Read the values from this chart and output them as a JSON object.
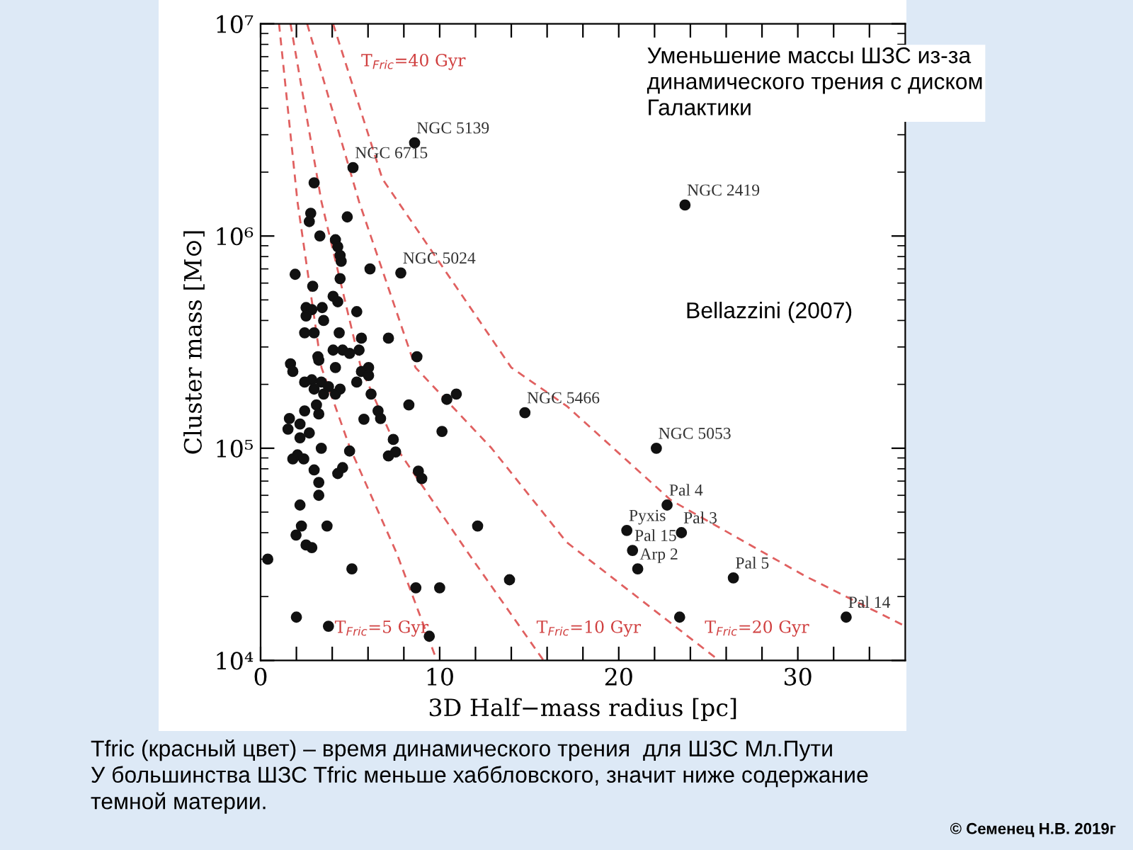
{
  "chart_data": {
    "type": "scatter",
    "xlabel": "3D Half−mass radius [pc]",
    "ylabel": "Cluster mass [M⊙]",
    "log": "y",
    "grid": false,
    "legend": false,
    "xlim": [
      0,
      36
    ],
    "ylim": [
      10000,
      10000000
    ],
    "xticks": [
      0,
      {
        "value": 2,
        "label": null
      },
      {
        "value": 4,
        "label": null
      },
      {
        "value": 6,
        "label": null
      },
      {
        "value": 8,
        "label": null
      },
      10,
      {
        "value": 12,
        "label": null
      },
      {
        "value": 14,
        "label": null
      },
      {
        "value": 16,
        "label": null
      },
      {
        "value": 18,
        "label": null
      },
      20,
      {
        "value": 22,
        "label": null
      },
      {
        "value": 24,
        "label": null
      },
      {
        "value": 26,
        "label": null
      },
      {
        "value": 28,
        "label": null
      },
      30,
      {
        "value": 32,
        "label": null
      },
      {
        "value": 34,
        "label": null
      }
    ],
    "yticks": [
      {
        "value": 10000,
        "label": "10⁴"
      },
      {
        "value": 100000,
        "label": "10⁵"
      },
      {
        "value": 1000000,
        "label": "10⁶"
      },
      {
        "value": 10000000,
        "label": "10⁷"
      }
    ],
    "series": [
      {
        "color": "#111111",
        "marker": "circle",
        "x": [
          8.6,
          5.16,
          2.99,
          2.8,
          2.72,
          4.84,
          3.31,
          4.18,
          4.31,
          4.44,
          4.5,
          1.93,
          6.11,
          7.83,
          4.44,
          2.91,
          4.05,
          4.31,
          5.37,
          2.54,
          2.86,
          3.44,
          2.54,
          3.52,
          2.46,
          4.39,
          2.99,
          5.63,
          7.14,
          4.05,
          4.58,
          5.5,
          3.2,
          8.73,
          1.67,
          4.97,
          1.8,
          3.25,
          4.18,
          6.03,
          5.63,
          6.03,
          2.46,
          2.86,
          3.39,
          3.79,
          2.99,
          3.52,
          4.44,
          5.37,
          6.17,
          4.18,
          8.28,
          10.4,
          10.93,
          3.12,
          2.46,
          3.25,
          6.56,
          5.77,
          6.7,
          1.61,
          2.2,
          1.53,
          2.72,
          10.13,
          2.2,
          7.41,
          3.39,
          4.97,
          7.54,
          7.14,
          2.06,
          1.8,
          2.41,
          4.58,
          4.31,
          2.99,
          8.81,
          9.0,
          3.25,
          3.25,
          2.2,
          2.28,
          3.71,
          12.12,
          1.98,
          2.54,
          2.86,
          0.4,
          5.1,
          13.9,
          8.67,
          10.0,
          2.0,
          3.79,
          9.42,
          23.7,
          14.76,
          22.1,
          22.7,
          20.45,
          23.5,
          20.77,
          21.06,
          26.4,
          32.7,
          23.4
        ],
        "values": [
          2750000,
          2100000,
          1780000,
          1280000,
          1170000,
          1230000,
          1000000,
          960000,
          890000,
          810000,
          760000,
          660000,
          700000,
          670000,
          630000,
          580000,
          520000,
          490000,
          440000,
          460000,
          450000,
          460000,
          420000,
          400000,
          350000,
          350000,
          350000,
          330000,
          330000,
          290000,
          290000,
          290000,
          270000,
          270000,
          250000,
          280000,
          230000,
          260000,
          240000,
          240000,
          230000,
          220000,
          205000,
          210000,
          205000,
          195000,
          190000,
          180000,
          190000,
          205000,
          180000,
          180000,
          160000,
          170000,
          180000,
          160000,
          150000,
          145000,
          150000,
          137000,
          138000,
          138000,
          130000,
          123000,
          118000,
          120000,
          112000,
          110000,
          100000,
          97000,
          96000,
          92000,
          93000,
          89000,
          89000,
          81000,
          76000,
          79000,
          78000,
          72000,
          69000,
          60000,
          54000,
          43000,
          43000,
          43000,
          39000,
          35000,
          34000,
          30000,
          27000,
          24000,
          22000,
          22000,
          16000,
          14500,
          13000,
          1400000,
          147000,
          100000,
          54000,
          41000,
          40000,
          33000,
          27000,
          24500,
          16000,
          16000
        ]
      },
      {
        "type": "line",
        "color": "#e06060",
        "marker": "none",
        "line_style": "dashed",
        "x": [
          1.03,
          2.06,
          3.4,
          5.0,
          7.6,
          9.84
        ],
        "values": [
          10000000,
          1450000,
          240000,
          100000,
          32000,
          10000
        ]
      },
      {
        "type": "line",
        "color": "#e06060",
        "marker": "none",
        "line_style": "dashed",
        "x": [
          1.67,
          3.4,
          5.6,
          7.6,
          11.6,
          15.8
        ],
        "values": [
          10000000,
          1450000,
          240000,
          100000,
          32000,
          10000
        ]
      },
      {
        "type": "line",
        "color": "#e06060",
        "marker": "none",
        "line_style": "dashed",
        "x": [
          2.6,
          5.5,
          8.65,
          12.9,
          17.1,
          25.6
        ],
        "values": [
          10000000,
          1450000,
          240000,
          100000,
          36000,
          10000
        ]
      },
      {
        "type": "line",
        "color": "#e06060",
        "marker": "none",
        "line_style": "dashed",
        "x": [
          4.05,
          6.8,
          14.0,
          17.1,
          22.9,
          30.4,
          36
        ],
        "values": [
          10000000,
          1860000,
          240000,
          158000,
          57000,
          25000,
          14500
        ]
      }
    ],
    "annotations": [
      "Уменьшение массы ШЗС из-за\nдинамического трения с диском\nГалактики",
      "Bellazzini (2007)",
      "Tfric (красный цвет) – время динамического трения  для ШЗС Мл.Пути\nУ большинства ШЗС Tfric меньше хаббловского, значит ниже содержание\nтемной материи.",
      "© Семенец Н.В. 2019г",
      "T$_{Fric}$=5 Gyr",
      "T$_{Fric}$=10 Gyr",
      "T$_{Fric}$=20 Gyr",
      "T$_{Fric}$=40 Gyr",
      {
        "text": "NGC 5139",
        "x": 8.6,
        "y": 2750000
      },
      {
        "text": "NGC 6715",
        "x": 5.16,
        "y": 2100000
      },
      {
        "text": "NGC 5024",
        "x": 7.83,
        "y": 670000
      },
      {
        "text": "NGC 2419",
        "x": 23.7,
        "y": 1400000
      },
      {
        "text": "NGC 5466",
        "x": 14.76,
        "y": 147000
      },
      {
        "text": "NGC 5053",
        "x": 22.1,
        "y": 100000
      },
      {
        "text": "Pal 4",
        "x": 22.7,
        "y": 54000
      },
      {
        "text": "Pyxis",
        "x": 20.45,
        "y": 41000
      },
      {
        "text": "Pal 3",
        "x": 23.5,
        "y": 40000
      },
      {
        "text": "Pal 15",
        "x": 20.77,
        "y": 33000
      },
      {
        "text": "Arp 2",
        "x": 21.06,
        "y": 27000
      },
      {
        "text": "Pal 5",
        "x": 26.4,
        "y": 24500
      },
      {
        "text": "Pal 14",
        "x": 32.7,
        "y": 16000
      }
    ]
  }
}
